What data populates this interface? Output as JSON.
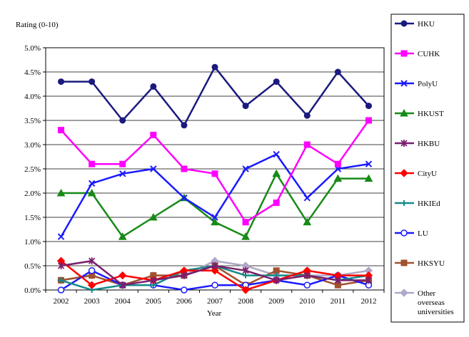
{
  "chart_data": {
    "type": "line",
    "ylabel": "Rating (0-10)",
    "xlabel": "Year",
    "x": [
      "2002",
      "2003",
      "2004",
      "2005",
      "2006",
      "2007",
      "2008",
      "2009",
      "2010",
      "2011",
      "2012"
    ],
    "ylim": [
      0,
      5.0
    ],
    "yticks": [
      "0.0%",
      "0.5%",
      "1.0%",
      "1.5%",
      "2.0%",
      "2.5%",
      "3.0%",
      "3.5%",
      "4.0%",
      "4.5%",
      "5.0%"
    ],
    "grid": "horizontal",
    "legend_position": "right",
    "series": [
      {
        "name": "HKU",
        "color": "#1a1a7e",
        "marker": "circle",
        "values": [
          4.3,
          4.3,
          3.5,
          4.2,
          3.4,
          4.6,
          3.8,
          4.3,
          3.6,
          4.5,
          3.8
        ]
      },
      {
        "name": "CUHK",
        "color": "#ff00ff",
        "marker": "square",
        "values": [
          3.3,
          2.6,
          2.6,
          3.2,
          2.5,
          2.4,
          1.4,
          1.8,
          3.0,
          2.6,
          3.5
        ]
      },
      {
        "name": "PolyU",
        "color": "#1a1aff",
        "marker": "x",
        "values": [
          1.1,
          2.2,
          2.4,
          2.5,
          1.9,
          1.5,
          2.5,
          2.8,
          1.9,
          2.5,
          2.6
        ]
      },
      {
        "name": "HKUST",
        "color": "#178a17",
        "marker": "triangle",
        "values": [
          2.0,
          2.0,
          1.1,
          1.5,
          1.9,
          1.4,
          1.1,
          2.4,
          1.4,
          2.3,
          2.3
        ]
      },
      {
        "name": "HKBU",
        "color": "#7a1f6e",
        "marker": "star",
        "values": [
          0.5,
          0.6,
          0.1,
          0.2,
          0.3,
          0.5,
          0.4,
          0.2,
          0.3,
          0.2,
          0.2
        ]
      },
      {
        "name": "CityU",
        "color": "#ff0000",
        "marker": "diamond",
        "values": [
          0.6,
          0.1,
          0.3,
          0.2,
          0.4,
          0.4,
          0.0,
          0.2,
          0.4,
          0.3,
          0.3
        ]
      },
      {
        "name": "HKIEd",
        "color": "#138a8a",
        "marker": "plus",
        "values": [
          0.2,
          0.0,
          0.1,
          0.1,
          0.4,
          0.5,
          0.3,
          0.3,
          0.3,
          0.2,
          0.3
        ]
      },
      {
        "name": "LU",
        "color": "#1a1aff",
        "marker": "ocircle",
        "values": [
          0.0,
          0.4,
          0.1,
          0.1,
          0.0,
          0.1,
          0.1,
          0.2,
          0.1,
          0.3,
          0.1
        ]
      },
      {
        "name": "HKSYU",
        "color": "#a0522d",
        "marker": "square",
        "values": [
          0.2,
          0.3,
          0.1,
          0.3,
          0.3,
          0.5,
          0.1,
          0.4,
          0.3,
          0.1,
          0.2
        ]
      },
      {
        "name": "Other overseas universities",
        "color": "#b0a8c8",
        "marker": "diamond",
        "values": [
          0.2,
          0.3,
          0.1,
          0.3,
          0.3,
          0.6,
          0.5,
          0.3,
          0.3,
          0.3,
          0.4
        ]
      }
    ]
  }
}
